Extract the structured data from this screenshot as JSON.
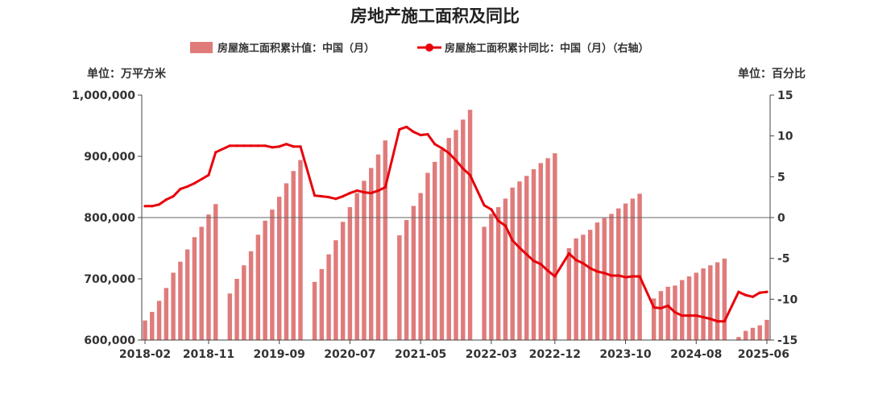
{
  "chart_data": {
    "type": "bar",
    "title": "房地产施工面积及同比",
    "left_unit": "单位：万平方米",
    "right_unit": "单位：百分比",
    "ylim_left": [
      600000,
      1000000
    ],
    "yticks_left": [
      "600,000",
      "700,000",
      "800,000",
      "900,000",
      "1,000,000"
    ],
    "ylim_right": [
      -15,
      15
    ],
    "yticks_right": [
      "-15",
      "-10",
      "-5",
      "0",
      "5",
      "10",
      "15"
    ],
    "x_tick_labels": [
      "2018-02",
      "2018-11",
      "2019-09",
      "2020-07",
      "2021-05",
      "2022-03",
      "2022-12",
      "2023-10",
      "2024-08",
      "2025-06"
    ],
    "grid": false,
    "legend_position": "top",
    "colors": {
      "bar": "#E07B7B",
      "line": "#E8000B"
    },
    "series": [
      {
        "name": "房屋施工面积累计值：中国（月）",
        "type": "bar",
        "axis": "left",
        "points": [
          [
            "2018-02",
            632000
          ],
          [
            "2018-03",
            646000
          ],
          [
            "2018-04",
            664000
          ],
          [
            "2018-05",
            685000
          ],
          [
            "2018-06",
            710000
          ],
          [
            "2018-07",
            728000
          ],
          [
            "2018-08",
            748000
          ],
          [
            "2018-09",
            768000
          ],
          [
            "2018-10",
            785000
          ],
          [
            "2018-11",
            805000
          ],
          [
            "2018-12",
            822000
          ],
          [
            "2019-02",
            676000
          ],
          [
            "2019-03",
            700000
          ],
          [
            "2019-04",
            722000
          ],
          [
            "2019-05",
            745000
          ],
          [
            "2019-06",
            772000
          ],
          [
            "2019-07",
            795000
          ],
          [
            "2019-08",
            813000
          ],
          [
            "2019-09",
            834000
          ],
          [
            "2019-10",
            856000
          ],
          [
            "2019-11",
            876000
          ],
          [
            "2019-12",
            894000
          ],
          [
            "2020-02",
            695000
          ],
          [
            "2020-03",
            716000
          ],
          [
            "2020-04",
            740000
          ],
          [
            "2020-05",
            763000
          ],
          [
            "2020-06",
            793000
          ],
          [
            "2020-07",
            817000
          ],
          [
            "2020-08",
            840000
          ],
          [
            "2020-09",
            860000
          ],
          [
            "2020-10",
            881000
          ],
          [
            "2020-11",
            903000
          ],
          [
            "2020-12",
            926000
          ],
          [
            "2021-02",
            771000
          ],
          [
            "2021-03",
            796000
          ],
          [
            "2021-04",
            819000
          ],
          [
            "2021-05",
            840000
          ],
          [
            "2021-06",
            873000
          ],
          [
            "2021-07",
            891000
          ],
          [
            "2021-08",
            911000
          ],
          [
            "2021-09",
            930000
          ],
          [
            "2021-10",
            943000
          ],
          [
            "2021-11",
            960000
          ],
          [
            "2021-12",
            976000
          ],
          [
            "2022-02",
            785000
          ],
          [
            "2022-03",
            806000
          ],
          [
            "2022-04",
            817000
          ],
          [
            "2022-05",
            831000
          ],
          [
            "2022-06",
            849000
          ],
          [
            "2022-07",
            859000
          ],
          [
            "2022-08",
            868000
          ],
          [
            "2022-09",
            879000
          ],
          [
            "2022-10",
            889000
          ],
          [
            "2022-11",
            897000
          ],
          [
            "2022-12",
            905000
          ],
          [
            "2023-02",
            750000
          ],
          [
            "2023-03",
            766000
          ],
          [
            "2023-04",
            772000
          ],
          [
            "2023-05",
            780000
          ],
          [
            "2023-06",
            792000
          ],
          [
            "2023-07",
            799000
          ],
          [
            "2023-08",
            806000
          ],
          [
            "2023-09",
            815000
          ],
          [
            "2023-10",
            823000
          ],
          [
            "2023-11",
            831000
          ],
          [
            "2023-12",
            839000
          ],
          [
            "2024-02",
            668000
          ],
          [
            "2024-03",
            680000
          ],
          [
            "2024-04",
            687000
          ],
          [
            "2024-05",
            689000
          ],
          [
            "2024-06",
            698000
          ],
          [
            "2024-07",
            704000
          ],
          [
            "2024-08",
            710000
          ],
          [
            "2024-09",
            717000
          ],
          [
            "2024-10",
            722000
          ],
          [
            "2024-11",
            727000
          ],
          [
            "2024-12",
            733000
          ],
          [
            "2025-02",
            605000
          ],
          [
            "2025-03",
            615000
          ],
          [
            "2025-04",
            620000
          ],
          [
            "2025-05",
            624000
          ],
          [
            "2025-06",
            633000
          ]
        ]
      },
      {
        "name": "房屋施工面积累计同比：中国（月）（右轴）",
        "type": "line",
        "axis": "right",
        "points": [
          [
            "2018-02",
            1.4
          ],
          [
            "2018-03",
            1.4
          ],
          [
            "2018-04",
            1.6
          ],
          [
            "2018-05",
            2.2
          ],
          [
            "2018-06",
            2.6
          ],
          [
            "2018-07",
            3.5
          ],
          [
            "2018-08",
            3.8
          ],
          [
            "2018-09",
            4.2
          ],
          [
            "2018-10",
            4.7
          ],
          [
            "2018-11",
            5.2
          ],
          [
            "2018-12",
            8.0
          ],
          [
            "2019-02",
            8.8
          ],
          [
            "2019-03",
            8.8
          ],
          [
            "2019-04",
            8.8
          ],
          [
            "2019-05",
            8.8
          ],
          [
            "2019-06",
            8.8
          ],
          [
            "2019-07",
            8.8
          ],
          [
            "2019-08",
            8.6
          ],
          [
            "2019-09",
            8.7
          ],
          [
            "2019-10",
            9.0
          ],
          [
            "2019-11",
            8.7
          ],
          [
            "2019-12",
            8.7
          ],
          [
            "2020-02",
            2.7
          ],
          [
            "2020-03",
            2.6
          ],
          [
            "2020-04",
            2.5
          ],
          [
            "2020-05",
            2.3
          ],
          [
            "2020-06",
            2.6
          ],
          [
            "2020-07",
            3.0
          ],
          [
            "2020-08",
            3.3
          ],
          [
            "2020-09",
            3.1
          ],
          [
            "2020-10",
            3.0
          ],
          [
            "2020-11",
            3.3
          ],
          [
            "2020-12",
            3.7
          ],
          [
            "2021-02",
            10.8
          ],
          [
            "2021-03",
            11.1
          ],
          [
            "2021-04",
            10.5
          ],
          [
            "2021-05",
            10.1
          ],
          [
            "2021-06",
            10.2
          ],
          [
            "2021-07",
            9.0
          ],
          [
            "2021-08",
            8.5
          ],
          [
            "2021-09",
            7.9
          ],
          [
            "2021-10",
            7.0
          ],
          [
            "2021-11",
            6.0
          ],
          [
            "2021-12",
            5.2
          ],
          [
            "2022-02",
            1.5
          ],
          [
            "2022-03",
            1.0
          ],
          [
            "2022-04",
            -0.4
          ],
          [
            "2022-05",
            -1.0
          ],
          [
            "2022-06",
            -2.8
          ],
          [
            "2022-07",
            -3.7
          ],
          [
            "2022-08",
            -4.5
          ],
          [
            "2022-09",
            -5.3
          ],
          [
            "2022-10",
            -5.7
          ],
          [
            "2022-11",
            -6.5
          ],
          [
            "2022-12",
            -7.2
          ],
          [
            "2023-02",
            -4.4
          ],
          [
            "2023-03",
            -5.2
          ],
          [
            "2023-04",
            -5.6
          ],
          [
            "2023-05",
            -6.2
          ],
          [
            "2023-06",
            -6.6
          ],
          [
            "2023-07",
            -6.8
          ],
          [
            "2023-08",
            -7.1
          ],
          [
            "2023-09",
            -7.1
          ],
          [
            "2023-10",
            -7.3
          ],
          [
            "2023-11",
            -7.2
          ],
          [
            "2023-12",
            -7.2
          ],
          [
            "2024-02",
            -11.0
          ],
          [
            "2024-03",
            -11.1
          ],
          [
            "2024-04",
            -10.8
          ],
          [
            "2024-05",
            -11.6
          ],
          [
            "2024-06",
            -12.0
          ],
          [
            "2024-07",
            -12.0
          ],
          [
            "2024-08",
            -12.0
          ],
          [
            "2024-09",
            -12.2
          ],
          [
            "2024-10",
            -12.4
          ],
          [
            "2024-11",
            -12.7
          ],
          [
            "2024-12",
            -12.7
          ],
          [
            "2025-02",
            -9.1
          ],
          [
            "2025-03",
            -9.5
          ],
          [
            "2025-04",
            -9.7
          ],
          [
            "2025-05",
            -9.2
          ],
          [
            "2025-06",
            -9.1
          ]
        ]
      }
    ]
  }
}
